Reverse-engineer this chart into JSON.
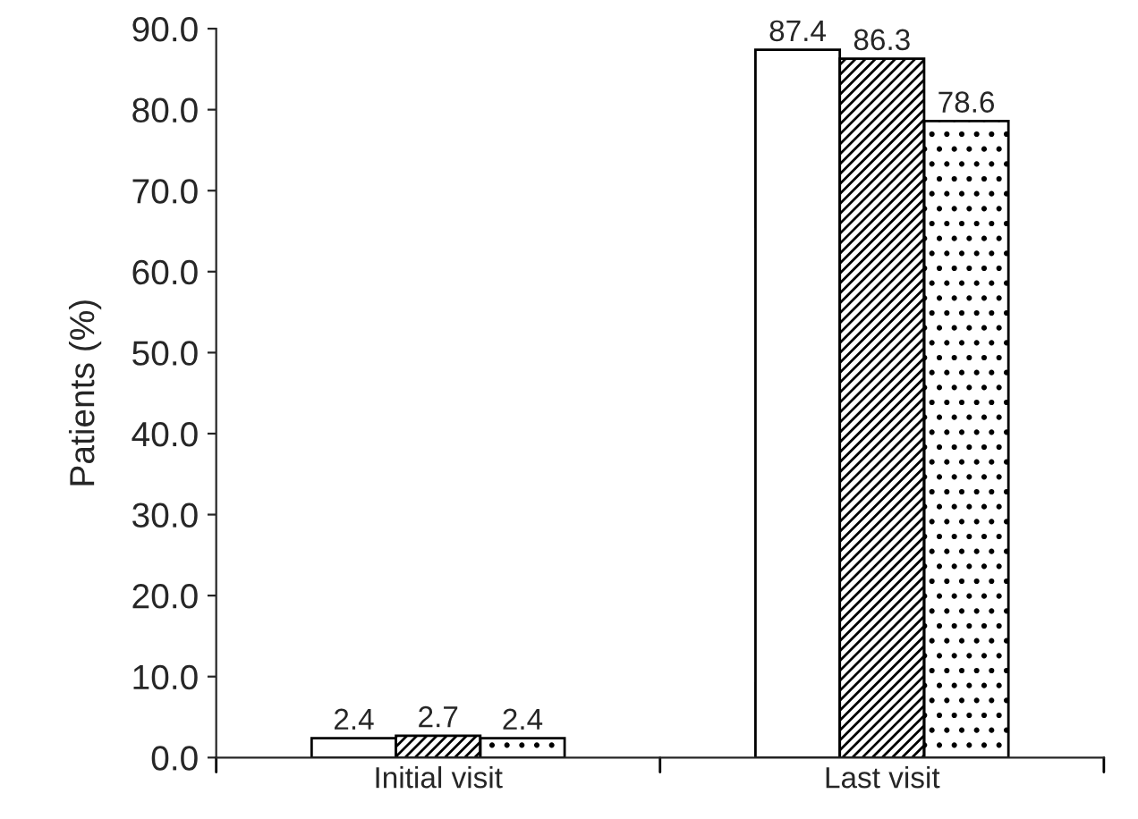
{
  "chart_data": {
    "type": "bar",
    "ylabel": "Patients (%)",
    "categories": [
      "Initial visit",
      "Last visit"
    ],
    "series": [
      {
        "color": "#ffffff",
        "values": [
          2.4,
          87.4
        ]
      },
      {
        "color": "#000000",
        "values": [
          2.7,
          86.3
        ]
      },
      {
        "color": "#000000",
        "values": [
          2.4,
          78.6
        ]
      }
    ],
    "ylim": [
      0,
      90
    ],
    "yticks": [
      {
        "value": 0,
        "label": "0.0"
      },
      {
        "value": 10,
        "label": "10.0"
      },
      {
        "value": 20,
        "label": "20.0"
      },
      {
        "value": 30,
        "label": "30.0"
      },
      {
        "value": 40,
        "label": "40.0"
      },
      {
        "value": 50,
        "label": "50.0"
      },
      {
        "value": 60,
        "label": "60.0"
      },
      {
        "value": 70,
        "label": "70.0"
      },
      {
        "value": 80,
        "label": "80.0"
      },
      {
        "value": 90,
        "label": "90.0"
      }
    ],
    "data_labels": true,
    "grid": false,
    "legend": false
  }
}
